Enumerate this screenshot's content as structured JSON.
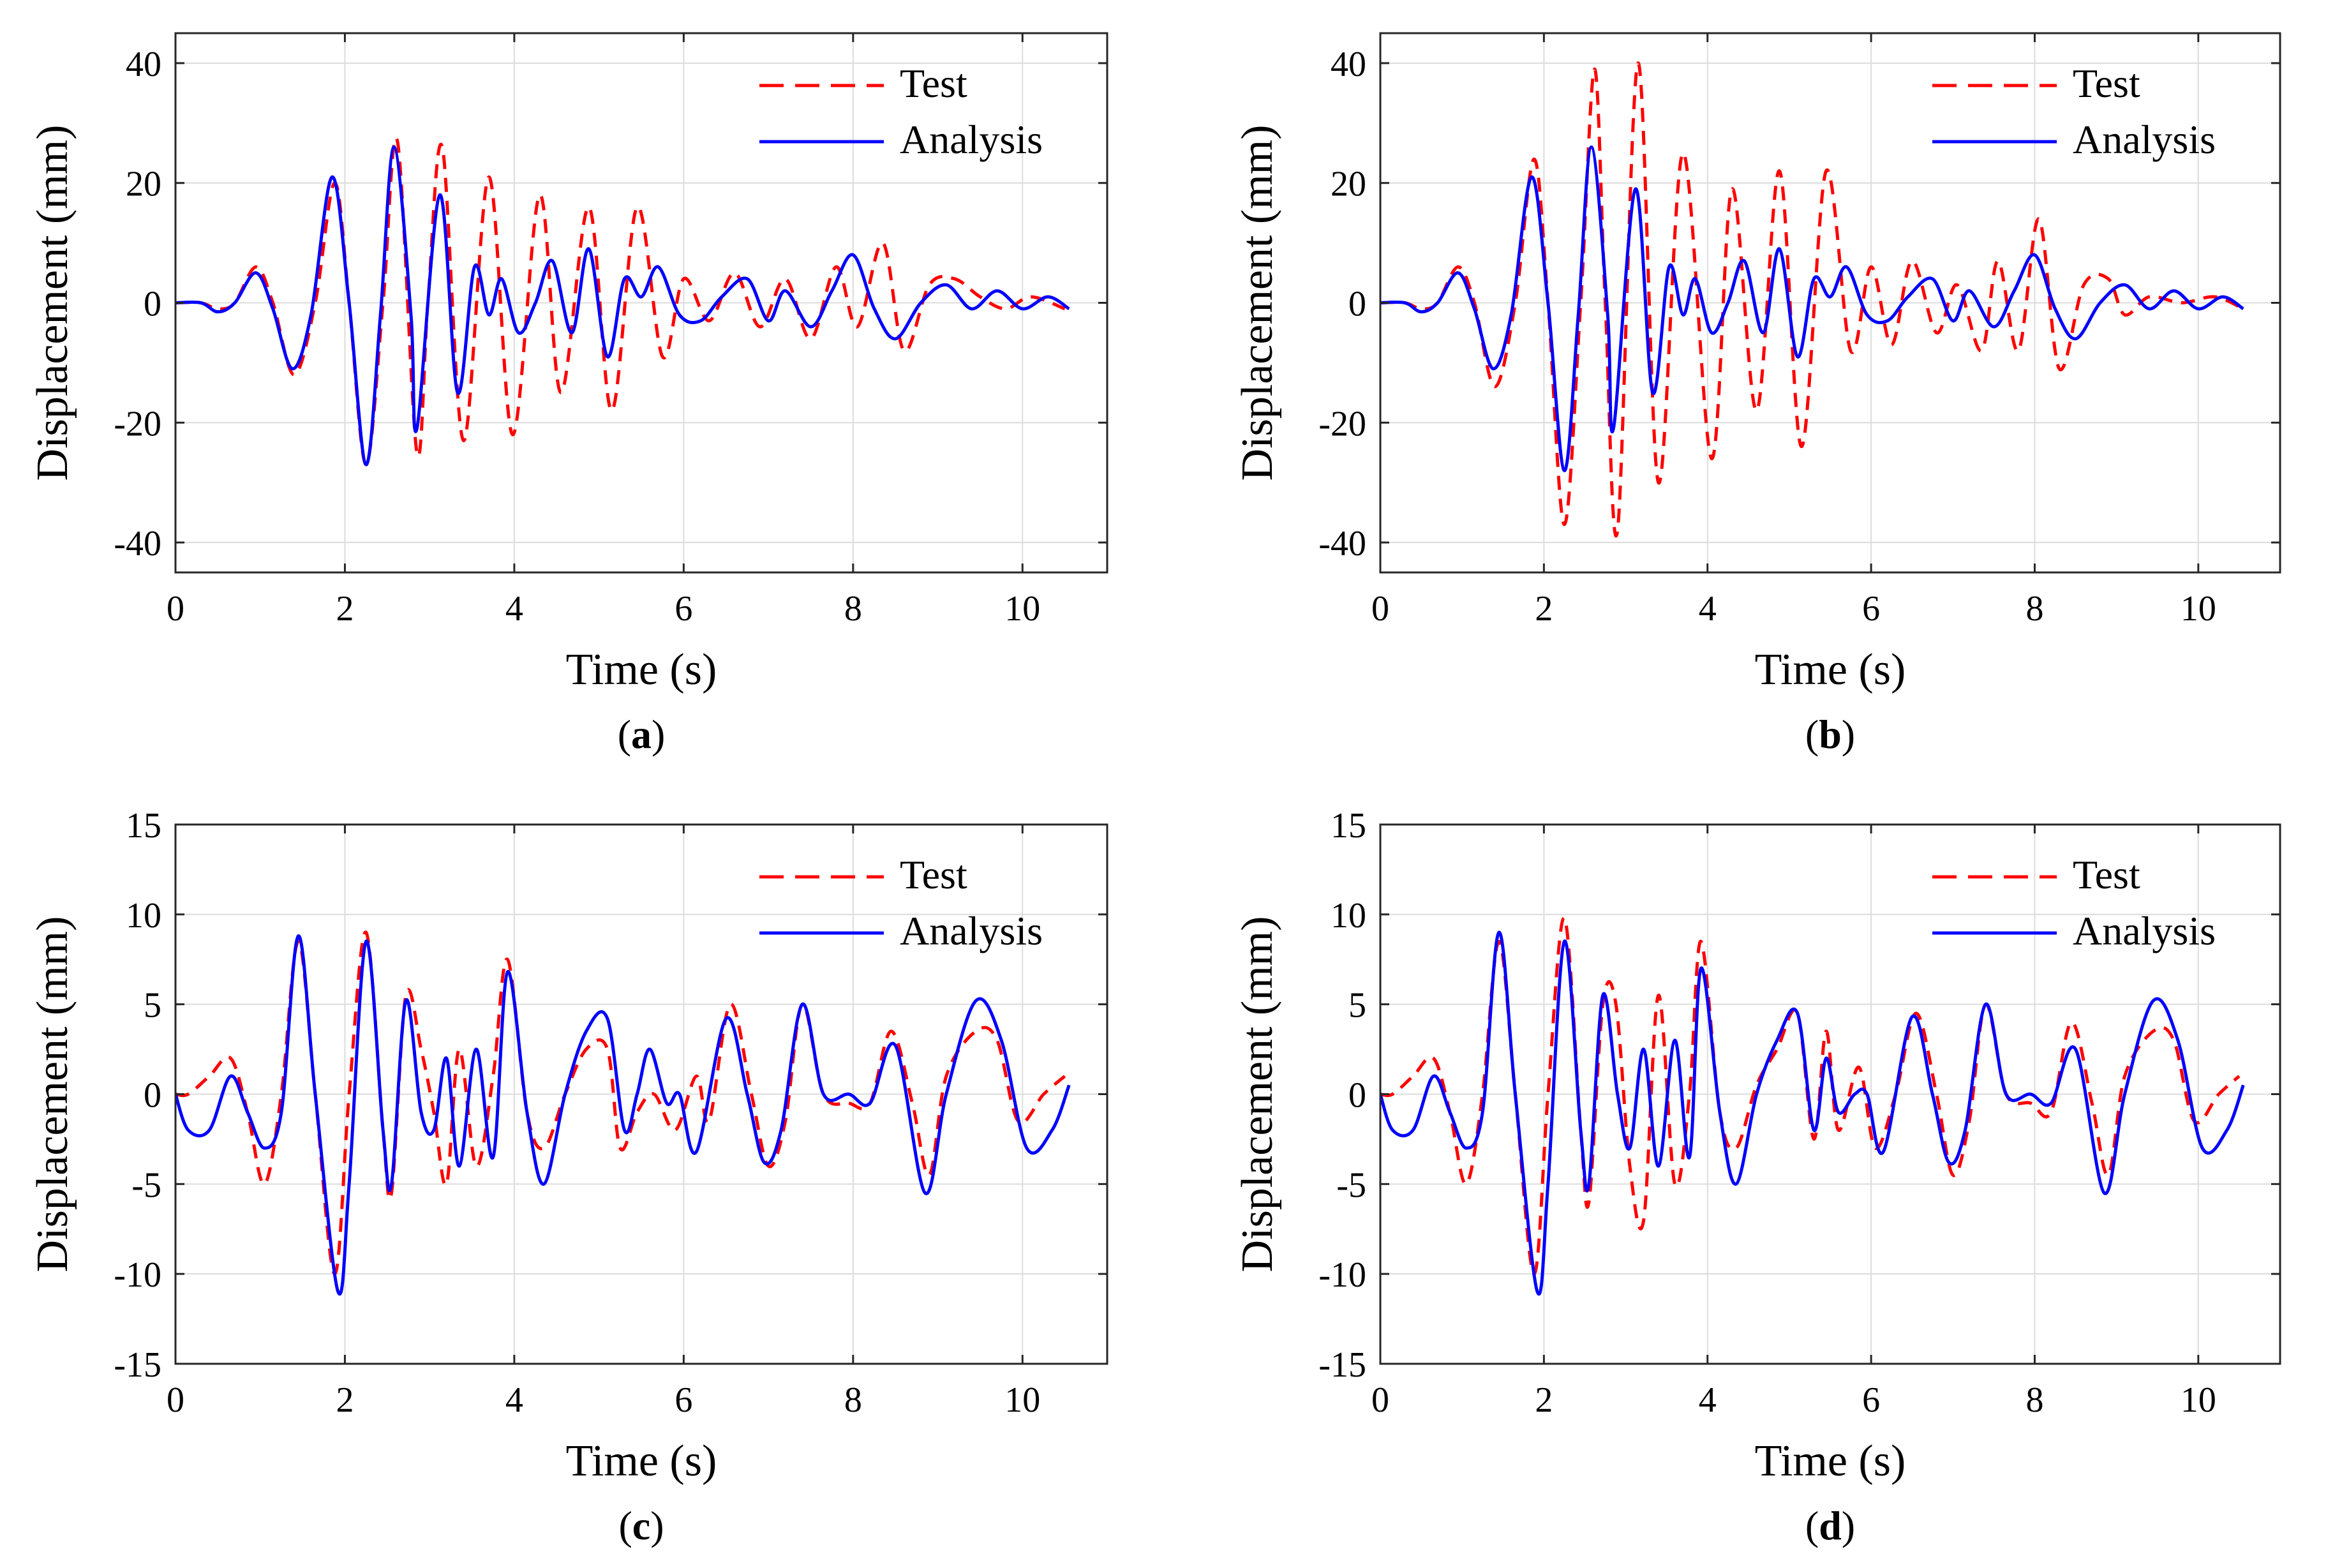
{
  "colors": {
    "test": "#ff0000",
    "analysis": "#0000ff",
    "grid": "#dcdcdc",
    "axis": "#262626"
  },
  "chart_data": [
    {
      "type": "line",
      "caption_letter": "a",
      "xlabel": "Time (s)",
      "ylabel": "Displacement (mm)",
      "xlim": [
        0,
        11
      ],
      "ylim": [
        -45,
        45
      ],
      "xticks": [
        0,
        2,
        4,
        6,
        8,
        10
      ],
      "yticks": [
        -40,
        -20,
        0,
        20,
        40
      ],
      "grid": true,
      "legend": "top-right",
      "series": [
        {
          "name": "Test",
          "style": "dashed",
          "color": "#ff0000",
          "t": [
            0,
            0.3,
            0.5,
            0.7,
            0.95,
            1.15,
            1.4,
            1.65,
            1.88,
            2.05,
            2.25,
            2.45,
            2.62,
            2.85,
            2.98,
            3.15,
            3.4,
            3.7,
            3.98,
            4.3,
            4.55,
            4.88,
            5.15,
            5.45,
            5.75,
            6.0,
            6.3,
            6.6,
            6.9,
            7.2,
            7.5,
            7.8,
            8.05,
            8.35,
            8.6,
            8.9,
            9.2,
            9.5,
            9.8,
            10.1,
            10.5
          ],
          "y": [
            0,
            0,
            -1,
            0,
            6,
            0,
            -12,
            0,
            20,
            0,
            -27,
            0,
            27,
            -25,
            0,
            26,
            -23,
            21,
            -22,
            18,
            -15,
            16,
            -18,
            16,
            -9,
            4,
            -3,
            5,
            -4,
            4,
            -6,
            6,
            -4,
            10,
            -8,
            3,
            4,
            1,
            -1,
            1,
            -1
          ]
        },
        {
          "name": "Analysis",
          "style": "solid",
          "color": "#0000ff",
          "t": [
            0,
            0.3,
            0.5,
            0.7,
            0.95,
            1.15,
            1.38,
            1.6,
            1.85,
            2.05,
            2.25,
            2.42,
            2.58,
            2.78,
            2.85,
            3.12,
            3.33,
            3.53,
            3.7,
            3.85,
            4.05,
            4.25,
            4.45,
            4.68,
            4.88,
            5.1,
            5.3,
            5.5,
            5.7,
            5.95,
            6.2,
            6.45,
            6.75,
            7.0,
            7.2,
            7.5,
            7.75,
            8.0,
            8.25,
            8.5,
            8.8,
            9.1,
            9.4,
            9.7,
            10.0,
            10.3,
            10.55
          ],
          "y": [
            0,
            0,
            -1.5,
            0,
            5,
            -1,
            -11,
            -2,
            21,
            0,
            -27,
            -2,
            26,
            -2,
            -21,
            18,
            -15,
            6,
            -2,
            4,
            -5,
            0,
            7,
            -5,
            9,
            -9,
            4,
            1,
            6,
            -2,
            -3,
            1,
            4,
            -3,
            2,
            -4,
            2,
            8,
            -1,
            -6,
            0,
            3,
            -1,
            2,
            -1,
            1,
            -1
          ]
        }
      ]
    },
    {
      "type": "line",
      "caption_letter": "b",
      "xlabel": "Time (s)",
      "ylabel": "Displacement (mm)",
      "xlim": [
        0,
        11
      ],
      "ylim": [
        -45,
        45
      ],
      "xticks": [
        0,
        2,
        4,
        6,
        8,
        10
      ],
      "yticks": [
        -40,
        -20,
        0,
        20,
        40
      ],
      "grid": true,
      "legend": "top-right",
      "series": [
        {
          "name": "Test",
          "style": "dashed",
          "color": "#ff0000",
          "t": [
            0,
            0.3,
            0.5,
            0.7,
            0.95,
            1.15,
            1.4,
            1.65,
            1.88,
            2.05,
            2.25,
            2.45,
            2.62,
            2.75,
            2.9,
            3.15,
            3.4,
            3.7,
            4.05,
            4.3,
            4.6,
            4.88,
            5.15,
            5.45,
            5.75,
            6.0,
            6.25,
            6.5,
            6.8,
            7.05,
            7.35,
            7.55,
            7.8,
            8.05,
            8.3,
            8.6,
            8.9,
            9.1,
            9.4,
            9.8,
            10.2,
            10.55
          ],
          "y": [
            0,
            0,
            -1,
            0,
            6,
            0,
            -14,
            0,
            24,
            0,
            -37,
            0,
            39,
            0,
            -38,
            40,
            -30,
            25,
            -26,
            19,
            -18,
            22,
            -24,
            22,
            -8,
            6,
            -7,
            7,
            -5,
            3,
            -8,
            7,
            -8,
            14,
            -11,
            3,
            4,
            -2,
            1,
            0,
            1,
            -1
          ]
        },
        {
          "name": "Analysis",
          "style": "solid",
          "color": "#0000ff",
          "t": [
            0,
            0.3,
            0.5,
            0.7,
            0.95,
            1.15,
            1.38,
            1.6,
            1.85,
            2.05,
            2.25,
            2.42,
            2.58,
            2.78,
            2.85,
            3.12,
            3.33,
            3.53,
            3.7,
            3.85,
            4.05,
            4.25,
            4.45,
            4.68,
            4.88,
            5.1,
            5.3,
            5.5,
            5.7,
            5.95,
            6.2,
            6.45,
            6.75,
            7.0,
            7.2,
            7.5,
            7.75,
            8.0,
            8.25,
            8.5,
            8.8,
            9.1,
            9.4,
            9.7,
            10.0,
            10.3,
            10.55
          ],
          "y": [
            0,
            0,
            -1.5,
            0,
            5,
            -1,
            -11,
            -2,
            21,
            0,
            -28,
            -2,
            26,
            -2,
            -21,
            19,
            -15,
            6,
            -2,
            4,
            -5,
            0,
            7,
            -5,
            9,
            -9,
            4,
            1,
            6,
            -2,
            -3,
            1,
            4,
            -3,
            2,
            -4,
            2,
            8,
            -1,
            -6,
            0,
            3,
            -1,
            2,
            -1,
            1,
            -1
          ]
        }
      ]
    },
    {
      "type": "line",
      "caption_letter": "c",
      "xlabel": "Time (s)",
      "ylabel": "Displacement (mm)",
      "xlim": [
        0,
        11
      ],
      "ylim": [
        -15,
        15
      ],
      "xticks": [
        0,
        2,
        4,
        6,
        8,
        10
      ],
      "yticks": [
        -15,
        -10,
        -5,
        0,
        5,
        10,
        15
      ],
      "grid": true,
      "legend": "top-right",
      "series": [
        {
          "name": "Test",
          "style": "dashed",
          "color": "#ff0000",
          "t": [
            0,
            0.15,
            0.4,
            0.65,
            0.85,
            1.05,
            1.25,
            1.45,
            1.65,
            1.88,
            2.05,
            2.25,
            2.45,
            2.55,
            2.72,
            2.9,
            3.05,
            3.2,
            3.35,
            3.55,
            3.75,
            3.92,
            4.15,
            4.35,
            4.6,
            4.85,
            5.1,
            5.25,
            5.45,
            5.65,
            5.9,
            6.15,
            6.3,
            6.55,
            6.8,
            7.0,
            7.2,
            7.4,
            7.65,
            7.95,
            8.2,
            8.45,
            8.7,
            8.9,
            9.1,
            9.45,
            9.7,
            9.95,
            10.25,
            10.5
          ],
          "y": [
            0,
            0,
            1,
            2,
            -1,
            -5,
            0,
            8.5,
            0,
            -10,
            0,
            9,
            -2,
            -5.5,
            5.5,
            2.5,
            -1,
            -5,
            2.5,
            -4,
            1,
            7.5,
            -1,
            -3,
            0,
            2.5,
            2.5,
            -3,
            -1,
            0,
            -2,
            1,
            -1.5,
            5,
            0,
            -4,
            -1.5,
            5,
            0,
            -0.5,
            -0.5,
            3.5,
            -0.5,
            -4.5,
            1,
            3.5,
            3,
            -1.5,
            0,
            1
          ]
        },
        {
          "name": "Analysis",
          "style": "solid",
          "color": "#0000ff",
          "t": [
            0,
            0.15,
            0.4,
            0.65,
            0.85,
            1.05,
            1.25,
            1.45,
            1.65,
            1.92,
            2.05,
            2.25,
            2.45,
            2.55,
            2.72,
            2.9,
            3.05,
            3.2,
            3.35,
            3.55,
            3.75,
            3.92,
            4.15,
            4.35,
            4.6,
            4.85,
            5.1,
            5.3,
            5.45,
            5.6,
            5.8,
            5.95,
            6.15,
            6.5,
            6.75,
            6.95,
            7.15,
            7.4,
            7.65,
            7.95,
            8.2,
            8.5,
            8.85,
            9.1,
            9.45,
            9.75,
            10.05,
            10.35,
            10.55
          ],
          "y": [
            0,
            -2,
            -2,
            1,
            -1,
            -3,
            -1,
            8.8,
            0,
            -11,
            -5,
            8.5,
            -2,
            -5,
            5.2,
            -1,
            -2,
            2,
            -4,
            2.5,
            -3.5,
            6.8,
            -1,
            -5,
            0,
            3.5,
            4.2,
            -2,
            0,
            2.5,
            -0.5,
            0,
            -3.2,
            4.2,
            0,
            -3.8,
            -2,
            5,
            0,
            0,
            -0.5,
            2.7,
            -5.5,
            0,
            5.2,
            3,
            -3,
            -2,
            0.5
          ]
        }
      ]
    },
    {
      "type": "line",
      "caption_letter": "d",
      "xlabel": "Time (s)",
      "ylabel": "Displacement (mm)",
      "xlim": [
        0,
        11
      ],
      "ylim": [
        -15,
        15
      ],
      "xticks": [
        0,
        2,
        4,
        6,
        8,
        10
      ],
      "yticks": [
        -15,
        -10,
        -5,
        0,
        5,
        10,
        15
      ],
      "grid": true,
      "legend": "top-right",
      "series": [
        {
          "name": "Test",
          "style": "dashed",
          "color": "#ff0000",
          "t": [
            0,
            0.15,
            0.4,
            0.65,
            0.85,
            1.05,
            1.25,
            1.45,
            1.65,
            1.88,
            2.05,
            2.25,
            2.45,
            2.55,
            2.72,
            2.88,
            3.05,
            3.22,
            3.4,
            3.6,
            3.78,
            3.92,
            4.15,
            4.35,
            4.6,
            4.85,
            5.1,
            5.3,
            5.45,
            5.6,
            5.85,
            6.05,
            6.3,
            6.55,
            6.8,
            7.0,
            7.2,
            7.4,
            7.65,
            7.95,
            8.2,
            8.45,
            8.7,
            8.9,
            9.1,
            9.45,
            9.7,
            9.95,
            10.25,
            10.5
          ],
          "y": [
            0,
            0,
            1,
            2,
            -1,
            -5,
            0,
            8.5,
            0,
            -10,
            0,
            9.8,
            -2,
            -6,
            5,
            5,
            -4,
            -7,
            5.5,
            -5,
            0,
            8.5,
            -1,
            -3,
            0.5,
            2.5,
            4.5,
            -2.5,
            3.5,
            -2,
            1.5,
            -3,
            0,
            4.5,
            0,
            -4.5,
            -1.5,
            5,
            0,
            -0.5,
            -1,
            4,
            -0.5,
            -4.5,
            1,
            3.5,
            3,
            -1.5,
            0,
            1
          ]
        },
        {
          "name": "Analysis",
          "style": "solid",
          "color": "#0000ff",
          "t": [
            0,
            0.15,
            0.4,
            0.65,
            0.85,
            1.05,
            1.25,
            1.45,
            1.65,
            1.92,
            2.05,
            2.25,
            2.45,
            2.55,
            2.72,
            2.9,
            3.05,
            3.22,
            3.4,
            3.6,
            3.78,
            3.92,
            4.15,
            4.35,
            4.6,
            4.85,
            5.1,
            5.3,
            5.45,
            5.6,
            5.8,
            5.95,
            6.15,
            6.5,
            6.75,
            6.95,
            7.15,
            7.4,
            7.65,
            7.95,
            8.2,
            8.5,
            8.85,
            9.1,
            9.45,
            9.75,
            10.05,
            10.35,
            10.55
          ],
          "y": [
            0,
            -2,
            -2,
            1,
            -1,
            -3,
            -1,
            9,
            0,
            -11,
            -5,
            8.5,
            -2,
            -5,
            5.5,
            0,
            -3,
            2.5,
            -4,
            3,
            -3.5,
            7,
            -1,
            -5,
            0,
            3,
            4.5,
            -2,
            2,
            -1,
            0,
            0,
            -3.2,
            4.3,
            0,
            -3.8,
            -2,
            5,
            0,
            0,
            -0.5,
            2.5,
            -5.5,
            0,
            5.2,
            3,
            -3,
            -2,
            0.5
          ]
        }
      ]
    }
  ]
}
